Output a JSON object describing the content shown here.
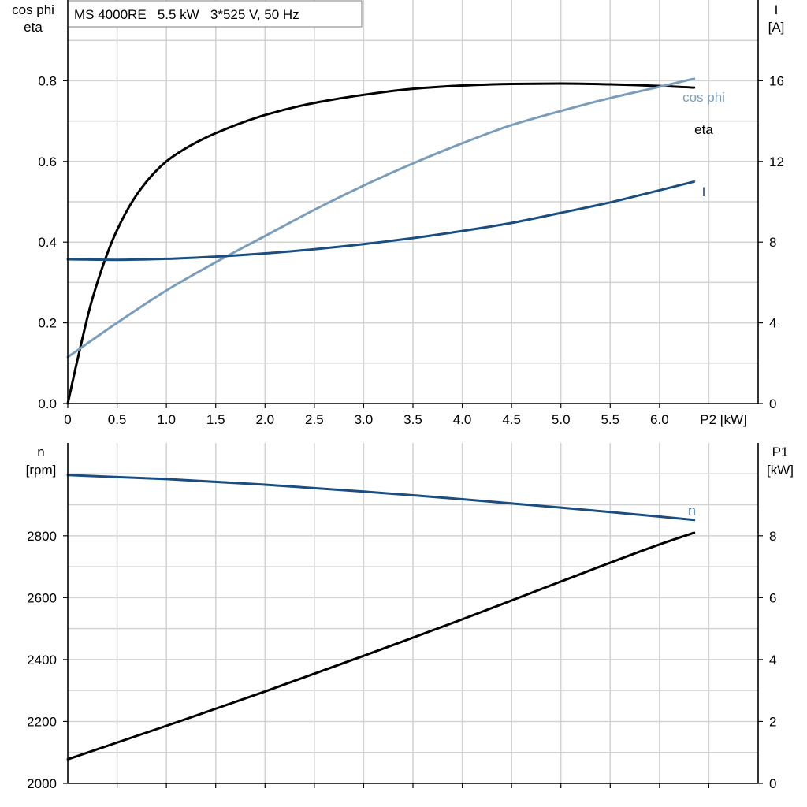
{
  "chart_data": [
    {
      "type": "line",
      "title": "MS 4000RE   5.5 kW   3*525 V, 50 Hz",
      "xlabel": "P2 [kW]",
      "x_ticks": [
        "0",
        "0.5",
        "1.0",
        "1.5",
        "2.0",
        "2.5",
        "3.0",
        "3.5",
        "4.0",
        "4.5",
        "5.0",
        "5.5",
        "6.0"
      ],
      "xlim": [
        0,
        7
      ],
      "ylabel_left": [
        "cos phi",
        "eta"
      ],
      "ylim_left": [
        0,
        1.0
      ],
      "y_ticks_left": [
        "0.0",
        "0.2",
        "0.4",
        "0.6",
        "0.8"
      ],
      "ylabel_right": [
        "I",
        "[A]"
      ],
      "ylim_right": [
        0,
        20
      ],
      "y_ticks_right": [
        "0",
        "4",
        "8",
        "12",
        "16"
      ],
      "grid": true,
      "series": [
        {
          "name": "eta",
          "axis": "left",
          "color": "#000000",
          "x": [
            0,
            0.1,
            0.25,
            0.5,
            0.75,
            1.0,
            1.25,
            1.5,
            2.0,
            2.5,
            3.0,
            3.5,
            4.0,
            4.5,
            5.0,
            5.5,
            6.0,
            6.35
          ],
          "y": [
            0,
            0.11,
            0.26,
            0.43,
            0.535,
            0.6,
            0.64,
            0.67,
            0.715,
            0.745,
            0.765,
            0.78,
            0.788,
            0.792,
            0.793,
            0.791,
            0.787,
            0.783
          ]
        },
        {
          "name": "cos phi",
          "axis": "left",
          "color": "#7a9dbb",
          "x": [
            0,
            0.5,
            1.0,
            1.5,
            2.0,
            2.5,
            3.0,
            3.5,
            4.0,
            4.5,
            5.0,
            5.5,
            6.0,
            6.35
          ],
          "y": [
            0.115,
            0.2,
            0.28,
            0.35,
            0.415,
            0.48,
            0.54,
            0.595,
            0.645,
            0.69,
            0.725,
            0.757,
            0.785,
            0.805
          ]
        },
        {
          "name": "I",
          "axis": "right",
          "color": "#1a4e80",
          "x": [
            0,
            0.5,
            1.0,
            1.5,
            2.0,
            2.5,
            3.0,
            3.5,
            4.0,
            4.5,
            5.0,
            5.5,
            6.0,
            6.35
          ],
          "y": [
            7.15,
            7.12,
            7.17,
            7.28,
            7.44,
            7.65,
            7.9,
            8.2,
            8.55,
            8.95,
            9.45,
            9.97,
            10.57,
            11.0
          ]
        }
      ]
    },
    {
      "type": "line",
      "xlim": [
        0,
        7
      ],
      "ylabel_left": [
        "n",
        "[rpm]"
      ],
      "ylim_left": [
        2000,
        3100
      ],
      "y_ticks_left": [
        "2000",
        "2200",
        "2400",
        "2600",
        "2800"
      ],
      "ylabel_right": [
        "P1",
        "[kW]"
      ],
      "ylim_right": [
        0,
        11
      ],
      "y_ticks_right": [
        "0",
        "2",
        "4",
        "6",
        "8"
      ],
      "grid": true,
      "series": [
        {
          "name": "n",
          "axis": "left",
          "color": "#1a4e80",
          "x": [
            0,
            1.0,
            2.0,
            3.0,
            4.0,
            5.0,
            6.0,
            6.35
          ],
          "y": [
            2996,
            2983,
            2965,
            2943,
            2918,
            2891,
            2862,
            2851
          ]
        },
        {
          "name": "P1",
          "axis": "right",
          "color": "#000000",
          "labeled": false,
          "x": [
            0,
            1.0,
            2.0,
            3.0,
            4.0,
            5.0,
            6.0,
            6.35
          ],
          "y": [
            0.78,
            1.86,
            2.97,
            4.12,
            5.3,
            6.52,
            7.72,
            8.1
          ]
        }
      ]
    }
  ]
}
